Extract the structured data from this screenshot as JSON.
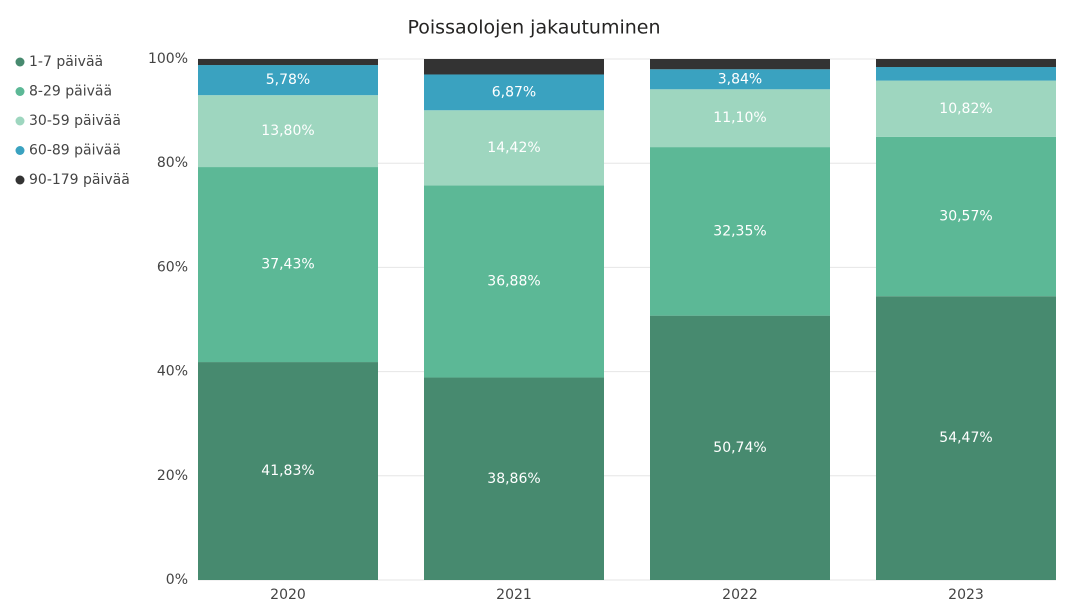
{
  "chart_data": {
    "type": "stacked_bar",
    "title": "Poissaolojen jakautuminen",
    "categories": [
      "2020",
      "2021",
      "2022",
      "2023"
    ],
    "series": [
      {
        "name": "1-7 päivää",
        "color": "#478a6f",
        "values": [
          41.83,
          38.86,
          50.74,
          54.47
        ],
        "value_labels": [
          "41,83%",
          "38,86%",
          "50,74%",
          "54,47%"
        ]
      },
      {
        "name": "8-29 päivää",
        "color": "#5cb896",
        "values": [
          37.43,
          36.88,
          32.35,
          30.57
        ],
        "value_labels": [
          "37,43%",
          "36,88%",
          "32,35%",
          "30,57%"
        ]
      },
      {
        "name": "30-59 päivää",
        "color": "#9ed6bf",
        "values": [
          13.8,
          14.42,
          11.1,
          10.82
        ],
        "value_labels": [
          "13,80%",
          "14,42%",
          "11,10%",
          "10,82%"
        ]
      },
      {
        "name": "60-89 päivää",
        "color": "#3aa2c0",
        "values": [
          5.78,
          6.87,
          3.84,
          2.6
        ],
        "value_labels": [
          "5,78%",
          "6,87%",
          "3,84%",
          null
        ]
      },
      {
        "name": "90-179 päivää",
        "color": "#333333",
        "values": [
          1.16,
          2.97,
          1.97,
          1.54
        ],
        "value_labels": [
          null,
          null,
          null,
          null
        ]
      }
    ],
    "ylim": [
      0,
      100
    ],
    "yticks": [
      {
        "value": 0,
        "label": "0%"
      },
      {
        "value": 20,
        "label": "20%"
      },
      {
        "value": 40,
        "label": "40%"
      },
      {
        "value": 60,
        "label": "60%"
      },
      {
        "value": 80,
        "label": "80%"
      },
      {
        "value": 100,
        "label": "100%"
      }
    ],
    "grid": true,
    "legend": "left"
  }
}
